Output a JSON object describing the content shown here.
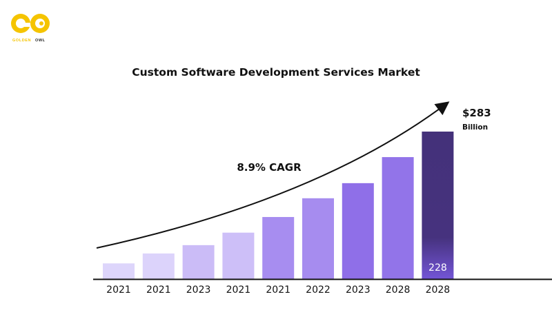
{
  "logo": {
    "text_main": "GOLDEN",
    "text_accent": "OWL",
    "brand_color": "#f5c400"
  },
  "chart_data": {
    "type": "bar",
    "title": "Custom Software Development Services Market",
    "categories": [
      "2021",
      "2021",
      "2023",
      "2021",
      "2021",
      "2022",
      "2023",
      "2028",
      "2028"
    ],
    "values": [
      30,
      49,
      65,
      89,
      119,
      155,
      184,
      234,
      283
    ],
    "colors": [
      "#ddd5fb",
      "#dcd3fb",
      "#cbbcf7",
      "#cdbff8",
      "#a78df0",
      "#a68cef",
      "#8f6fe8",
      "#9274e9",
      "#44317a"
    ],
    "bar_label": "228",
    "annotation_growth": "8.9% CAGR",
    "annotation_value": "$283",
    "annotation_unit": "Billion",
    "ylim": [
      0,
      300
    ],
    "grid": false,
    "legend": "none"
  }
}
